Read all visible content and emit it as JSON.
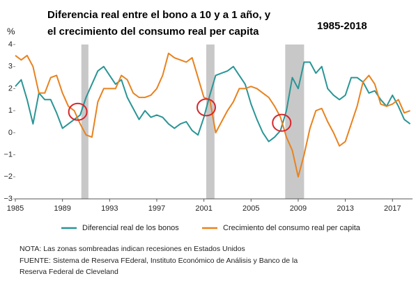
{
  "chart_data": {
    "type": "line",
    "title": [
      "Diferencia real entre el bono a 10 y a 1 año, y",
      "el crecimiento del consumo real per capita"
    ],
    "subtitle": "1985-2018",
    "y_label": "%",
    "x": [
      1985,
      1985.5,
      1986,
      1986.5,
      1987,
      1987.5,
      1988,
      1988.5,
      1989,
      1989.5,
      1990,
      1990.5,
      1991,
      1991.5,
      1992,
      1992.5,
      1993,
      1993.5,
      1994,
      1994.5,
      1995,
      1995.5,
      1996,
      1996.5,
      1997,
      1997.5,
      1998,
      1998.5,
      1999,
      1999.5,
      2000,
      2000.5,
      2001,
      2001.5,
      2002,
      2002.5,
      2003,
      2003.5,
      2004,
      2004.5,
      2005,
      2005.5,
      2006,
      2006.5,
      2007,
      2007.5,
      2008,
      2008.5,
      2009,
      2009.5,
      2010,
      2010.5,
      2011,
      2011.5,
      2012,
      2012.5,
      2013,
      2013.5,
      2014,
      2014.5,
      2015,
      2015.5,
      2016,
      2016.5,
      2017,
      2017.5,
      2018,
      2018.5
    ],
    "series": [
      {
        "name": "Diferencial real de los bonos",
        "color": "#2a9595",
        "values": [
          2.1,
          2.4,
          1.5,
          0.4,
          1.8,
          1.5,
          1.5,
          0.9,
          0.2,
          0.4,
          0.6,
          0.8,
          1.6,
          2.2,
          2.8,
          3.0,
          2.6,
          2.2,
          2.4,
          1.6,
          1.1,
          0.6,
          1.0,
          0.7,
          0.8,
          0.7,
          0.4,
          0.2,
          0.4,
          0.5,
          0.1,
          -0.1,
          0.7,
          1.7,
          2.6,
          2.7,
          2.8,
          3.0,
          2.6,
          2.2,
          1.3,
          0.6,
          0.0,
          -0.4,
          -0.2,
          0.1,
          1.0,
          2.5,
          2.0,
          3.2,
          3.2,
          2.7,
          3.0,
          2.0,
          1.7,
          1.5,
          1.7,
          2.5,
          2.5,
          2.3,
          1.8,
          1.9,
          1.5,
          1.2,
          1.7,
          1.2,
          0.6,
          0.4
        ]
      },
      {
        "name": "Crecimiento del consumo real per capita",
        "color": "#e8821e",
        "values": [
          3.5,
          3.3,
          3.5,
          3.0,
          1.8,
          1.8,
          2.5,
          2.6,
          1.8,
          1.2,
          1.0,
          0.4,
          -0.1,
          -0.2,
          1.4,
          2.0,
          2.0,
          2.0,
          2.6,
          2.4,
          1.8,
          1.6,
          1.6,
          1.7,
          2.0,
          2.6,
          3.6,
          3.4,
          3.3,
          3.2,
          3.4,
          2.5,
          1.6,
          1.5,
          0.0,
          0.5,
          1.0,
          1.4,
          2.0,
          2.0,
          2.1,
          2.0,
          1.8,
          1.6,
          1.2,
          0.7,
          -0.2,
          -0.8,
          -2.0,
          -1.0,
          0.2,
          1.0,
          1.1,
          0.5,
          0.0,
          -0.6,
          -0.4,
          0.4,
          1.2,
          2.3,
          2.6,
          2.2,
          1.3,
          1.2,
          1.3,
          1.5,
          0.9,
          1.0
        ]
      }
    ],
    "recessions": [
      [
        1990.6,
        1991.2
      ],
      [
        2001.2,
        2001.9
      ],
      [
        2007.9,
        2009.5
      ]
    ],
    "recession_color": "#c8c8c8",
    "circled_points": [
      {
        "x": 1990.3,
        "y": 0.95
      },
      {
        "x": 2001.2,
        "y": 1.15
      },
      {
        "x": 2007.6,
        "y": 0.45
      }
    ],
    "circle_color": "#d7262b",
    "xlim": [
      1985,
      2018.7
    ],
    "xticks": [
      1985,
      1989,
      1993,
      1997,
      2001,
      2005,
      2009,
      2013,
      2017
    ],
    "ylim": [
      -3,
      4
    ],
    "yticks": [
      4,
      3,
      2,
      1,
      0,
      {
        "value": -1,
        "label": "−1"
      },
      {
        "value": -2,
        "label": "−2"
      },
      {
        "value": -3,
        "label": "−3"
      }
    ],
    "notes": [
      "NOTA: Las zonas sombreadas indican recesiones en Estados Unidos",
      "FUENTE: Sistema de Reserva FEderal, Instituto Económico de Análisis y Banco de la",
      "Reserva Federal de Cleveland"
    ]
  }
}
